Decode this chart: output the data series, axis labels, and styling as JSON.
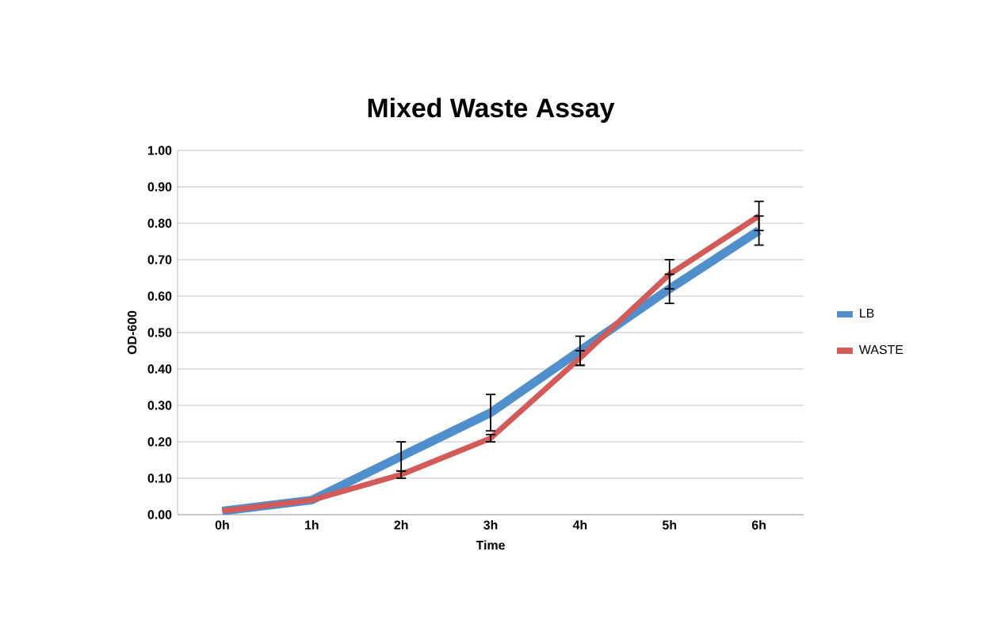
{
  "chart_data": {
    "type": "line",
    "title": "Mixed Waste Assay",
    "xlabel": "Time",
    "ylabel": "OD-600",
    "categories": [
      "0h",
      "1h",
      "2h",
      "3h",
      "4h",
      "5h",
      "6h"
    ],
    "series": [
      {
        "name": "LB",
        "color": "#4f8fcc",
        "values": [
          0.01,
          0.04,
          0.16,
          0.28,
          0.45,
          0.62,
          0.78
        ],
        "errors": [
          null,
          null,
          0.04,
          0.05,
          0.04,
          0.04,
          0.04
        ]
      },
      {
        "name": "WASTE",
        "color": "#d45a58",
        "values": [
          0.01,
          0.04,
          0.11,
          0.21,
          0.43,
          0.66,
          0.82
        ],
        "errors": [
          null,
          null,
          0.01,
          0.01,
          0.02,
          0.04,
          0.04
        ]
      }
    ],
    "ylim": [
      0,
      1
    ],
    "yticks": [
      {
        "value": 0,
        "label": "0.00"
      },
      {
        "value": 0.1,
        "label": "0.10"
      },
      {
        "value": 0.2,
        "label": "0.20"
      },
      {
        "value": 0.3,
        "label": "0.30"
      },
      {
        "value": 0.4,
        "label": "0.40"
      },
      {
        "value": 0.5,
        "label": "0.50"
      },
      {
        "value": 0.6,
        "label": "0.60"
      },
      {
        "value": 0.7,
        "label": "0.70"
      },
      {
        "value": 0.8,
        "label": "0.80"
      },
      {
        "value": 0.9,
        "label": "0.90"
      },
      {
        "value": 1,
        "label": "1.00"
      }
    ],
    "grid": "y",
    "legend": "right",
    "marker": "none",
    "line_style": "solid"
  }
}
